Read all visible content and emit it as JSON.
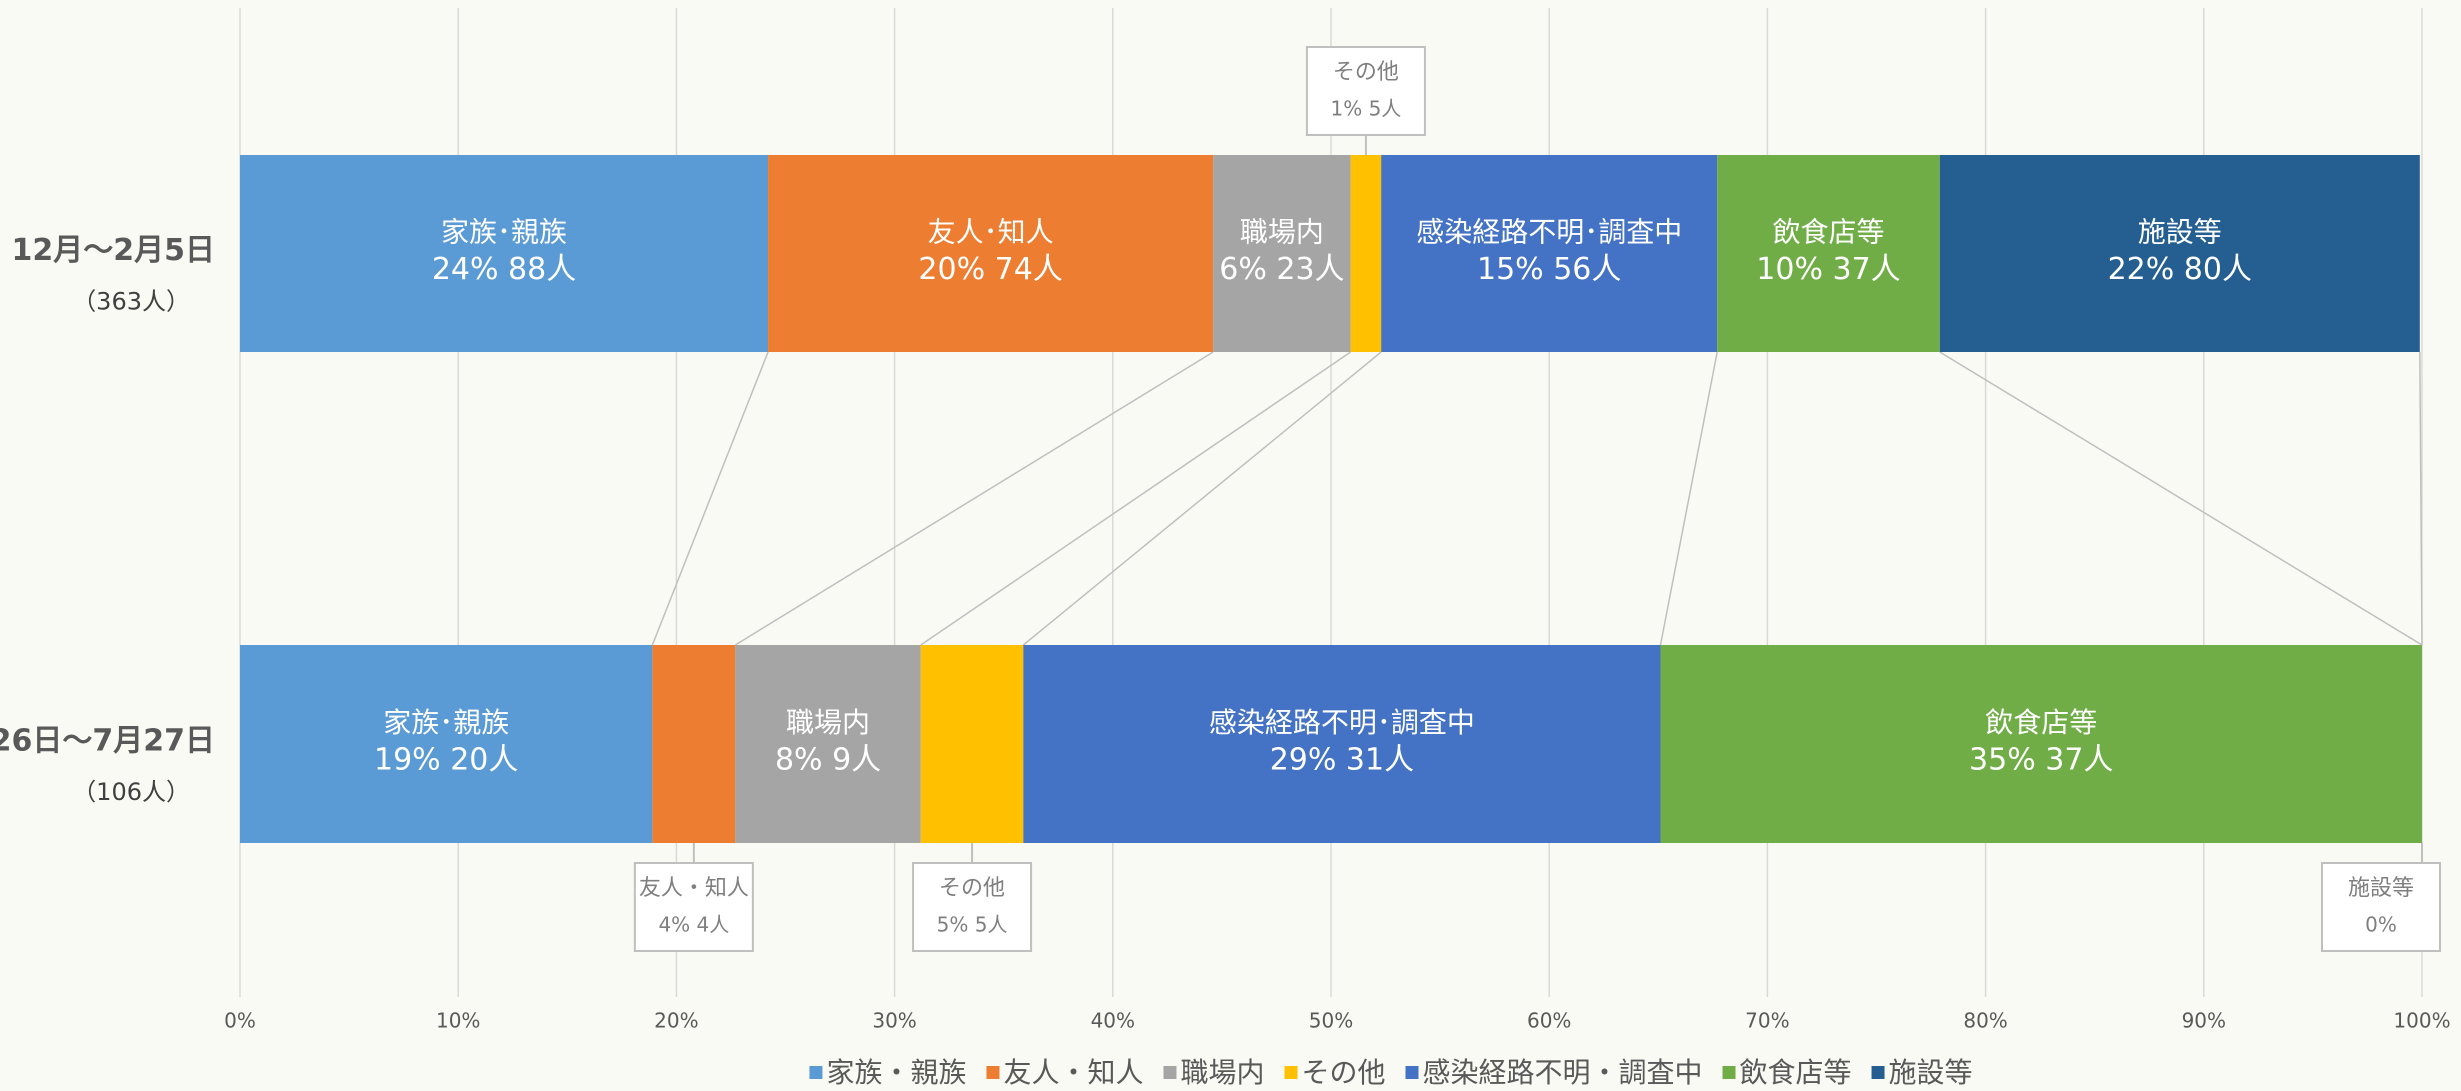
{
  "chart_data": {
    "type": "bar",
    "orientation": "horizontal",
    "stacked": true,
    "categories": [
      "12月～2月5日",
      "26日～7月27日"
    ],
    "category_notes": [
      "（363人）",
      "（106人）"
    ],
    "series": [
      {
        "name": "家族・親族",
        "color": "#5b9bd5",
        "values": [
          24.2,
          18.9
        ],
        "value_labels": [
          "24%  88人",
          "19%  20人"
        ],
        "bar_labels": [
          "家族･親族",
          "家族･親族"
        ]
      },
      {
        "name": "友人・知人",
        "color": "#ed7d31",
        "values": [
          20.4,
          3.8
        ],
        "value_labels": [
          "20%  74人",
          "4%   4人"
        ],
        "bar_labels": [
          "友人･知人",
          "友人・知人"
        ]
      },
      {
        "name": "職場内",
        "color": "#a5a5a5",
        "values": [
          6.3,
          8.5
        ],
        "value_labels": [
          "6%  23人",
          "8%  9人"
        ],
        "bar_labels": [
          "職場内",
          "職場内"
        ]
      },
      {
        "name": "その他",
        "color": "#ffc000",
        "values": [
          1.4,
          4.7
        ],
        "value_labels": [
          "1%   5人",
          "5%   5人"
        ],
        "bar_labels": [
          "その他",
          "その他"
        ]
      },
      {
        "name": "感染経路不明・調査中",
        "color": "#4472c4",
        "values": [
          15.4,
          29.2
        ],
        "value_labels": [
          "15%  56人",
          "29%  31人"
        ],
        "bar_labels": [
          "感染経路不明･調査中",
          "感染経路不明･調査中"
        ]
      },
      {
        "name": "飲食店等",
        "color": "#70ad47",
        "values": [
          10.2,
          34.9
        ],
        "value_labels": [
          "10%  37人",
          "35%  37人"
        ],
        "bar_labels": [
          "飲食店等",
          "飲食店等"
        ]
      },
      {
        "name": "施設等",
        "color": "#255e91",
        "values": [
          22.0,
          0
        ],
        "value_labels": [
          "22%  80人",
          "0%"
        ],
        "bar_labels": [
          "施設等",
          "施設等"
        ]
      }
    ],
    "xlim": [
      0,
      100
    ],
    "xticks": [
      {
        "value": 0,
        "label": "0%"
      },
      {
        "value": 10,
        "label": "10%"
      },
      {
        "value": 20,
        "label": "20%"
      },
      {
        "value": 30,
        "label": "30%"
      },
      {
        "value": 40,
        "label": "40%"
      },
      {
        "value": 50,
        "label": "50%"
      },
      {
        "value": 60,
        "label": "60%"
      },
      {
        "value": 70,
        "label": "70%"
      },
      {
        "value": 80,
        "label": "80%"
      },
      {
        "value": 90,
        "label": "90%"
      },
      {
        "value": 100,
        "label": "100%"
      }
    ],
    "grid": true,
    "legend": "bottom"
  }
}
